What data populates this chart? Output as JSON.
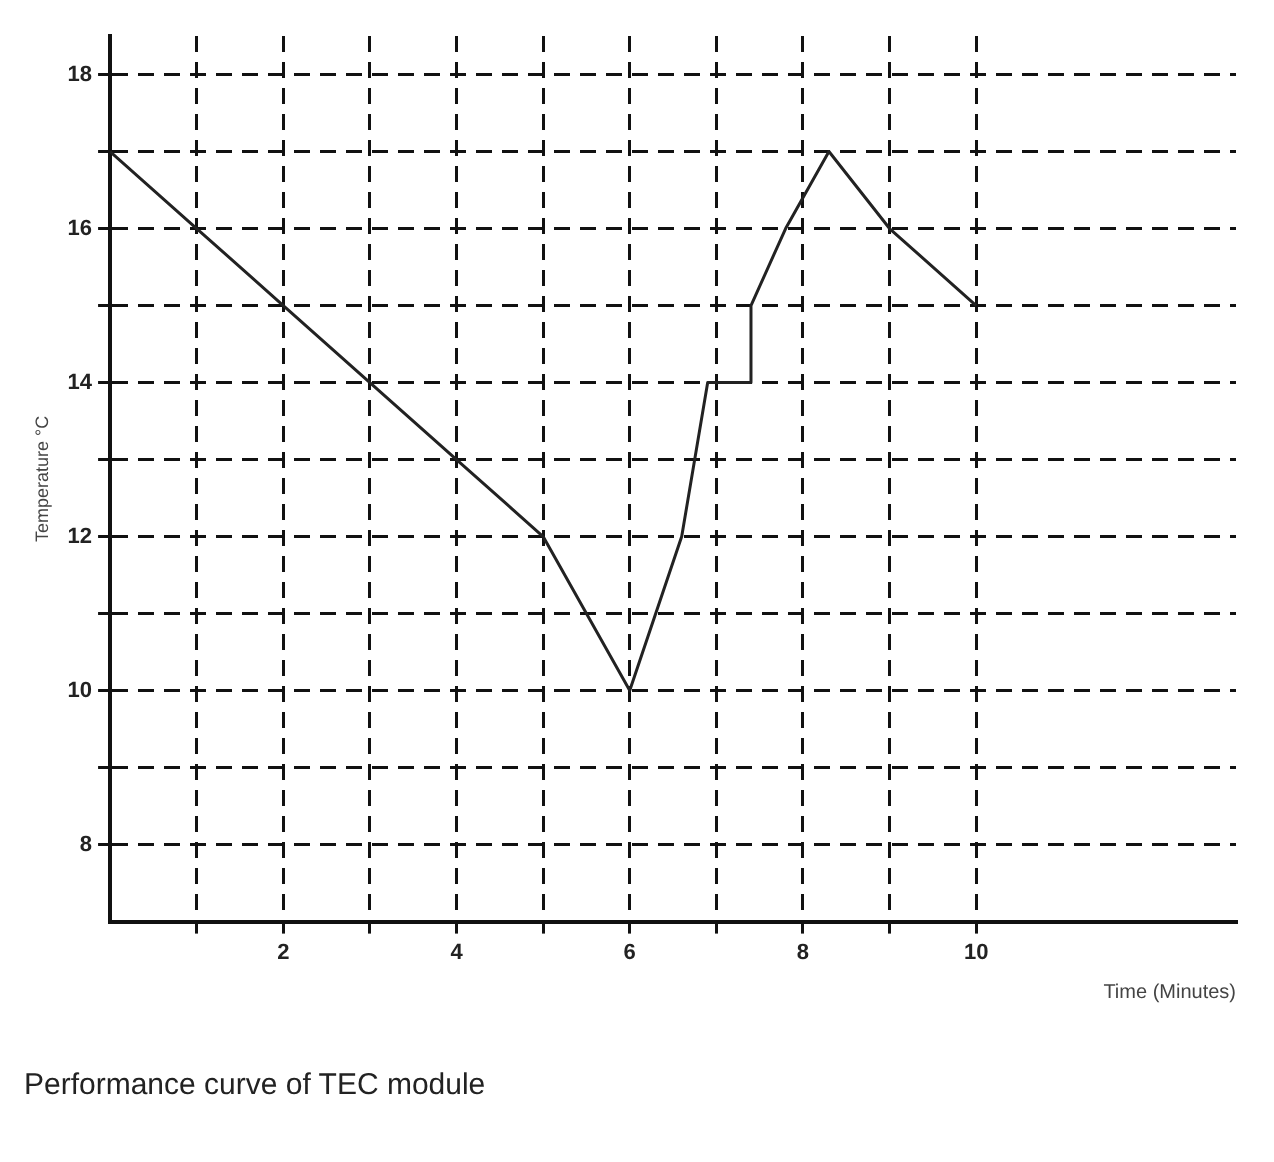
{
  "chart_data": {
    "type": "line",
    "title": "Performance curve of TEC module",
    "xlabel": "Time (Minutes)",
    "ylabel": "Temperature °C",
    "x": [
      0,
      1,
      2,
      3,
      4,
      5,
      6,
      6.6,
      6.9,
      7.4,
      7.4,
      7.8,
      8.3,
      9,
      10
    ],
    "series": [
      {
        "color": "#222222",
        "values": [
          17,
          16,
          15,
          14,
          13,
          12,
          10,
          12,
          14,
          14,
          15,
          16,
          17,
          16,
          15
        ]
      }
    ],
    "xlim": [
      0,
      13
    ],
    "ylim": [
      7,
      18.5
    ],
    "xticks": [
      {
        "value": 1,
        "label": null
      },
      2,
      {
        "value": 3,
        "label": null
      },
      4,
      {
        "value": 5,
        "label": null
      },
      6,
      {
        "value": 7,
        "label": null
      },
      8,
      {
        "value": 9,
        "label": null
      },
      10
    ],
    "yticks": [
      8,
      {
        "value": 9,
        "label": null
      },
      10,
      {
        "value": 11,
        "label": null
      },
      12,
      {
        "value": 13,
        "label": null
      },
      14,
      {
        "value": 15,
        "label": null
      },
      16,
      {
        "value": 17,
        "label": null
      },
      18
    ],
    "grid": true,
    "legend": false,
    "marker": "none",
    "line_style": "solid"
  }
}
